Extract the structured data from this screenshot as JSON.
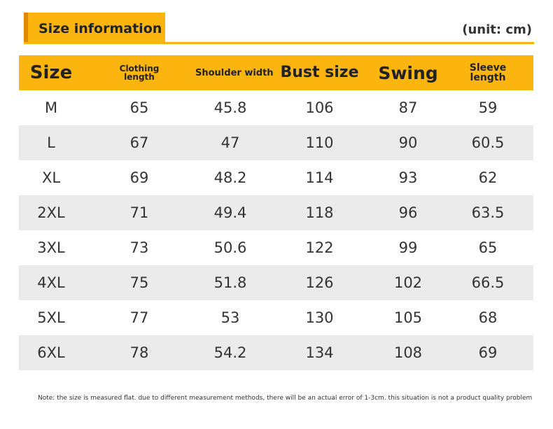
{
  "title": "Size information",
  "unit": "(unit: cm)",
  "accent_color": "#fbb50e",
  "table": {
    "headers": {
      "size": "Size",
      "clothing_length": [
        "Clothing",
        "length"
      ],
      "shoulder_width": "Shoulder width",
      "bust_size": "Bust size",
      "swing": "Swing",
      "sleeve_length": [
        "Sleeve",
        "length"
      ]
    },
    "rows": [
      [
        "M",
        "65",
        "45.8",
        "106",
        "87",
        "59"
      ],
      [
        "L",
        "67",
        "47",
        "110",
        "90",
        "60.5"
      ],
      [
        "XL",
        "69",
        "48.2",
        "114",
        "93",
        "62"
      ],
      [
        "2XL",
        "71",
        "49.4",
        "118",
        "96",
        "63.5"
      ],
      [
        "3XL",
        "73",
        "50.6",
        "122",
        "99",
        "65"
      ],
      [
        "4XL",
        "75",
        "51.8",
        "126",
        "102",
        "66.5"
      ],
      [
        "5XL",
        "77",
        "53",
        "130",
        "105",
        "68"
      ],
      [
        "6XL",
        "78",
        "54.2",
        "134",
        "108",
        "69"
      ]
    ]
  },
  "footnote": "Note: the size is measured flat. due to different measurement methods, there will be an actual error of 1-3cm. this situation is not a product quality problem"
}
